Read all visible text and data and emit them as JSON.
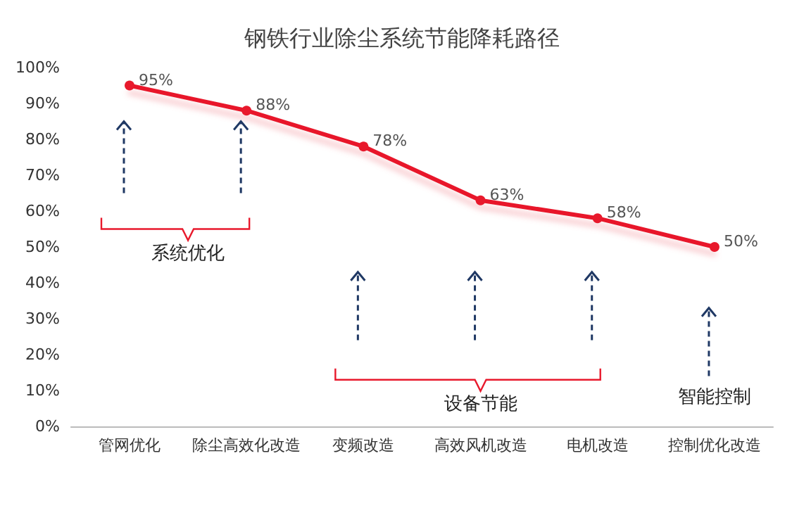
{
  "chart_data": {
    "type": "line",
    "title": "钢铁行业除尘系统节能降耗路径",
    "categories": [
      "管网优化",
      "除尘高效化改造",
      "变频改造",
      "高效风机改造",
      "电机改造",
      "控制优化改造"
    ],
    "series": [
      {
        "color": "#e8192c",
        "values": [
          95,
          88,
          78,
          63,
          58,
          50
        ]
      }
    ],
    "value_labels": [
      "95%",
      "88%",
      "78%",
      "63%",
      "58%",
      "50%"
    ],
    "ylim": [
      0,
      100
    ],
    "yticks": [
      {
        "value": 0,
        "label": "0%"
      },
      {
        "value": 10,
        "label": "10%"
      },
      {
        "value": 20,
        "label": "20%"
      },
      {
        "value": 30,
        "label": "30%"
      },
      {
        "value": 40,
        "label": "40%"
      },
      {
        "value": 50,
        "label": "50%"
      },
      {
        "value": 60,
        "label": "60%"
      },
      {
        "value": 70,
        "label": "70%"
      },
      {
        "value": 80,
        "label": "80%"
      },
      {
        "value": 90,
        "label": "90%"
      },
      {
        "value": 100,
        "label": "100%"
      }
    ],
    "annotations": [
      "系统优化",
      "设备节能",
      "智能控制"
    ],
    "grid": false,
    "marker": "circle",
    "line_style": "solid"
  }
}
